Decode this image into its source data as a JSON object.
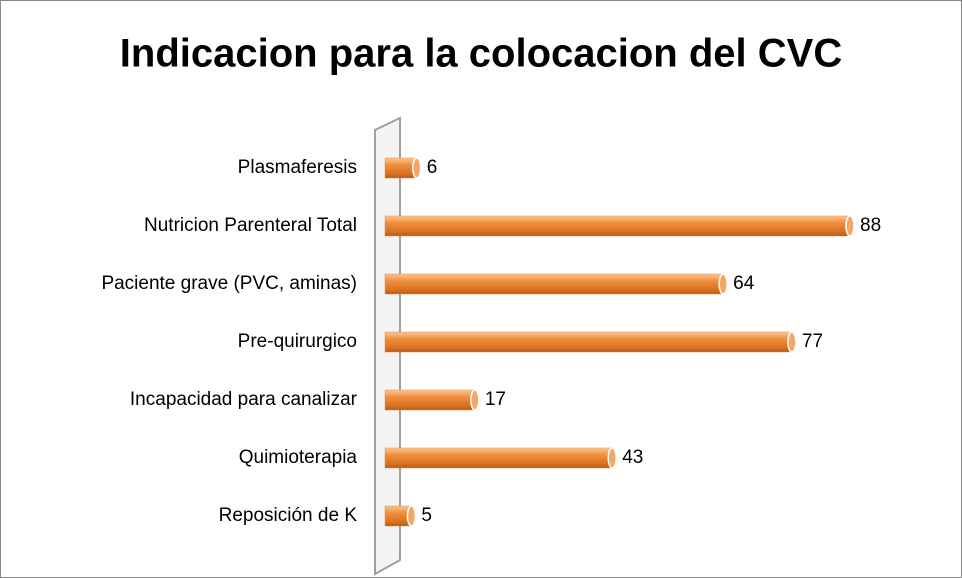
{
  "chart_data": {
    "type": "bar",
    "orientation": "horizontal",
    "title": "Indicacion para la colocacion del CVC",
    "categories": [
      "Plasmaferesis",
      "Nutricion Parenteral Total",
      "Paciente grave (PVC, aminas)",
      "Pre-quirurgico",
      "Incapacidad para canalizar",
      "Quimioterapia",
      "Reposición de K"
    ],
    "values": [
      6,
      88,
      64,
      77,
      17,
      43,
      5
    ],
    "color": "#ee8a3c"
  }
}
